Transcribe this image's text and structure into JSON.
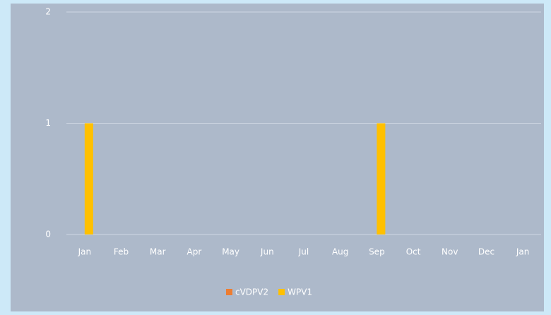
{
  "chart_data": {
    "type": "bar",
    "categories": [
      "Jan",
      "Feb",
      "Mar",
      "Apr",
      "May",
      "Jun",
      "Jul",
      "Aug",
      "Sep",
      "Oct",
      "Nov",
      "Dec",
      "Jan"
    ],
    "series": [
      {
        "name": "cVDPV2",
        "color": "#ed7d31",
        "values": [
          0,
          0,
          0,
          0,
          0,
          0,
          0,
          0,
          0,
          0,
          0,
          0,
          0
        ]
      },
      {
        "name": "WPV1",
        "color": "#ffc000",
        "values": [
          1,
          0,
          0,
          0,
          0,
          0,
          0,
          0,
          1,
          0,
          0,
          0,
          0
        ]
      }
    ],
    "ylim": [
      0,
      2
    ],
    "yticks": [
      0,
      1,
      2
    ],
    "grid": true,
    "legend": "bottom"
  }
}
